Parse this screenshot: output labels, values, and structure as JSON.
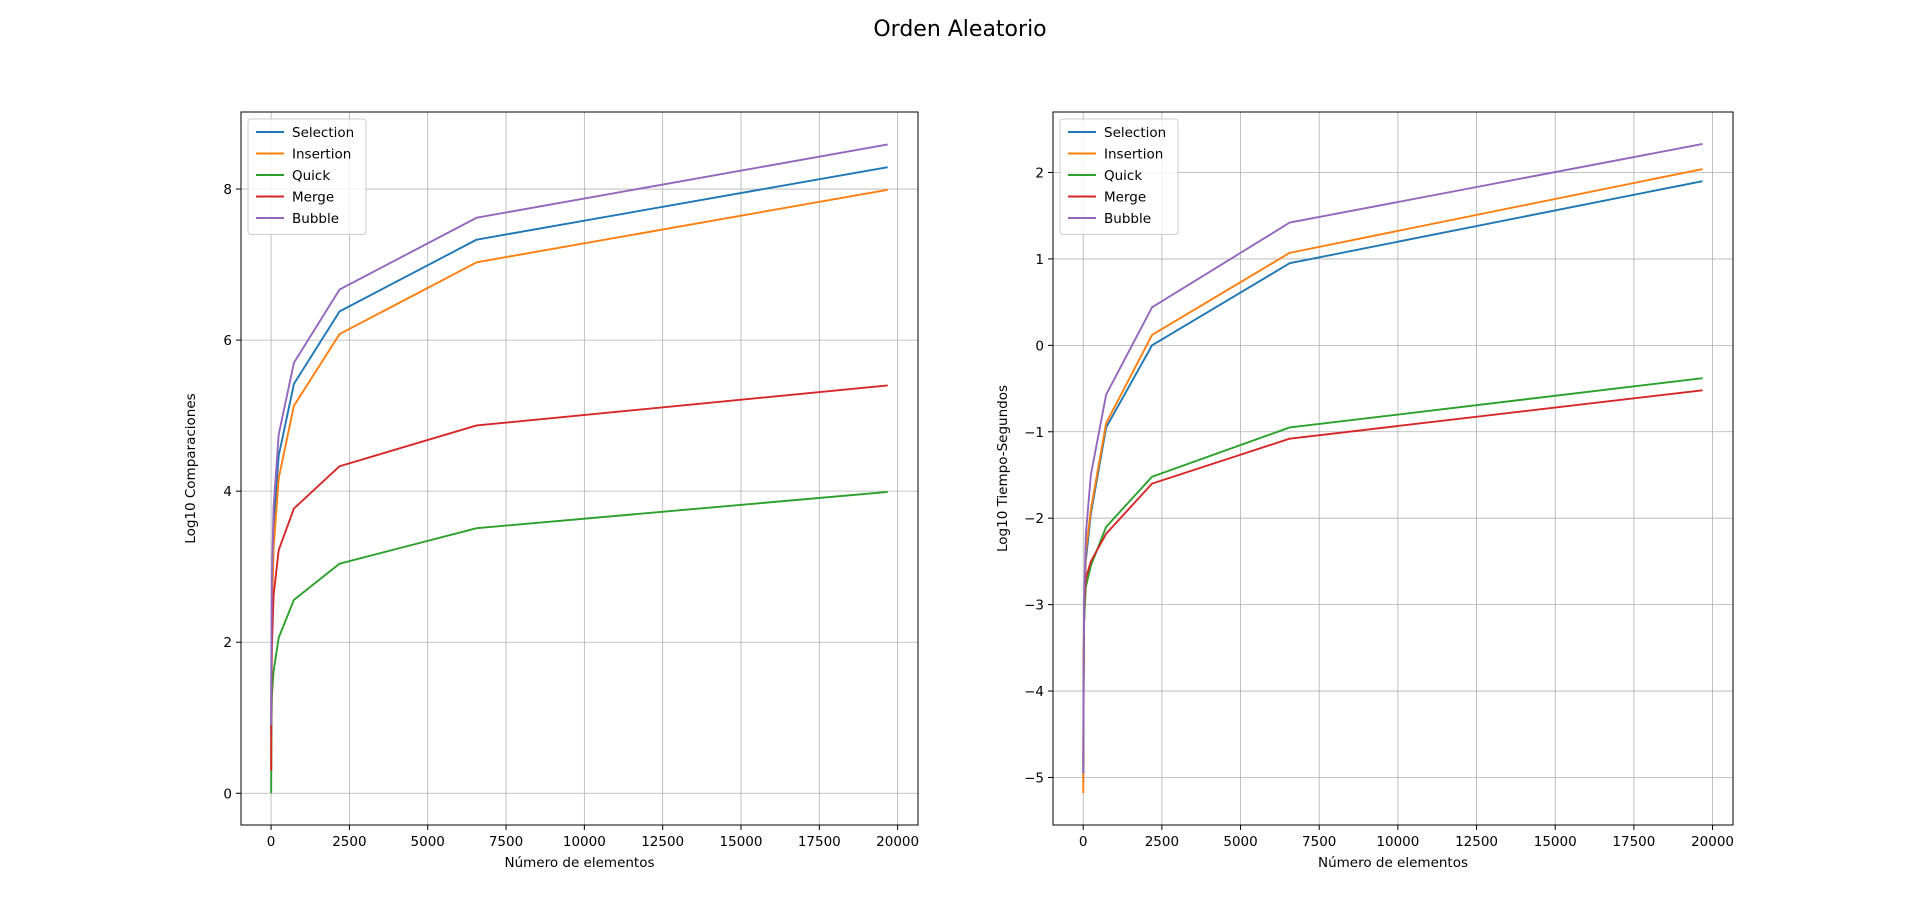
{
  "figure": {
    "title": "Orden Aleatorio"
  },
  "chart_data": [
    {
      "type": "line",
      "xlabel": "Número de elementos",
      "ylabel": "Log10 Comparaciones",
      "xlim": [
        -960,
        20650
      ],
      "ylim": [
        -0.42,
        9.02
      ],
      "xticks": [
        0,
        2500,
        5000,
        7500,
        10000,
        12500,
        15000,
        17500,
        20000
      ],
      "yticks": [
        0,
        2,
        4,
        6,
        8
      ],
      "xtick_labels": [
        "0",
        "2500",
        "5000",
        "7500",
        "10000",
        "12500",
        "15000",
        "17500",
        "20000"
      ],
      "ytick_labels": [
        "0",
        "2",
        "4",
        "6",
        "8"
      ],
      "grid": true,
      "legend": "top-left",
      "x": [
        3,
        9,
        27,
        81,
        243,
        729,
        2187,
        6561,
        19683
      ],
      "series": [
        {
          "name": "Selection",
          "color": "#1f77b4",
          "values": [
            0.78,
            1.65,
            2.62,
            3.53,
            4.47,
            5.42,
            6.38,
            7.33,
            8.29
          ]
        },
        {
          "name": "Insertion",
          "color": "#ff7f0e",
          "values": [
            0.3,
            1.37,
            2.34,
            3.25,
            4.17,
            5.13,
            6.08,
            7.03,
            7.99
          ]
        },
        {
          "name": "Quick",
          "color": "#2ca02c",
          "values": [
            0.0,
            0.85,
            1.3,
            1.62,
            2.06,
            2.56,
            3.04,
            3.51,
            3.99
          ]
        },
        {
          "name": "Merge",
          "color": "#d62728",
          "values": [
            0.3,
            1.2,
            1.95,
            2.62,
            3.22,
            3.77,
            4.33,
            4.87,
            5.4
          ]
        },
        {
          "name": "Bubble",
          "color": "#9467bd",
          "values": [
            0.9,
            1.85,
            2.85,
            3.79,
            4.75,
            5.7,
            6.67,
            7.62,
            8.59
          ]
        }
      ]
    },
    {
      "type": "line",
      "xlabel": "Número de elementos",
      "ylabel": "Log10 Tiempo-Segundos",
      "xlim": [
        -960,
        20650
      ],
      "ylim": [
        -5.55,
        2.7
      ],
      "xticks": [
        0,
        2500,
        5000,
        7500,
        10000,
        12500,
        15000,
        17500,
        20000
      ],
      "yticks": [
        -5,
        -4,
        -3,
        -2,
        -1,
        0,
        1,
        2
      ],
      "xtick_labels": [
        "0",
        "2500",
        "5000",
        "7500",
        "10000",
        "12500",
        "15000",
        "17500",
        "20000"
      ],
      "ytick_labels": [
        "−5",
        "−4",
        "−3",
        "−2",
        "−1",
        "0",
        "1",
        "2"
      ],
      "grid": true,
      "legend": "top-left",
      "x": [
        3,
        9,
        27,
        81,
        243,
        729,
        2187,
        6561,
        19683
      ],
      "series": [
        {
          "name": "Selection",
          "color": "#1f77b4",
          "values": [
            -5.05,
            -4.3,
            -3.25,
            -2.5,
            -1.95,
            -0.95,
            0.0,
            0.95,
            1.9
          ]
        },
        {
          "name": "Insertion",
          "color": "#ff7f0e",
          "values": [
            -5.18,
            -4.2,
            -3.2,
            -2.4,
            -1.9,
            -0.9,
            0.12,
            1.07,
            2.04
          ]
        },
        {
          "name": "Quick",
          "color": "#2ca02c",
          "values": [
            -4.95,
            -4.05,
            -3.2,
            -2.8,
            -2.55,
            -2.1,
            -1.52,
            -0.95,
            -0.38
          ]
        },
        {
          "name": "Merge",
          "color": "#d62728",
          "values": [
            -4.85,
            -4.0,
            -3.05,
            -2.7,
            -2.5,
            -2.18,
            -1.6,
            -1.08,
            -0.52
          ]
        },
        {
          "name": "Bubble",
          "color": "#9467bd",
          "values": [
            -4.95,
            -4.1,
            -3.0,
            -2.2,
            -1.5,
            -0.57,
            0.44,
            1.42,
            2.33
          ]
        }
      ]
    }
  ]
}
